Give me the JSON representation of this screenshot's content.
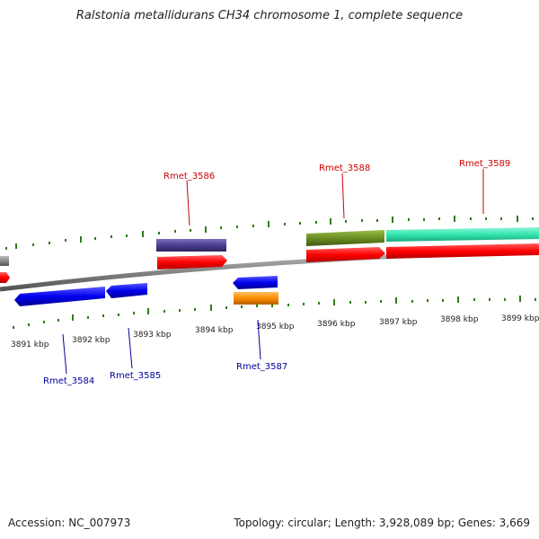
{
  "title": "Ralstonia metallidurans CH34 chromosome 1, complete sequence",
  "footer": {
    "accession": "Accession: NC_007973",
    "stats": "Topology: circular; Length: 3,928,089 bp; Genes: 3,669"
  },
  "ticks": [
    "3891 kbp",
    "3892 kbp",
    "3893 kbp",
    "3894 kbp",
    "3895 kbp",
    "3896 kbp",
    "3897 kbp",
    "3898 kbp",
    "3899 kbp"
  ],
  "gene_labels": {
    "rmet_3584": "Rmet_3584",
    "rmet_3585": "Rmet_3585",
    "rmet_3586": "Rmet_3586",
    "rmet_3587": "Rmet_3587",
    "rmet_3588": "Rmet_3588",
    "rmet_3589": "Rmet_3589"
  },
  "colors": {
    "forward_label": "#cc0000",
    "reverse_label": "#000099",
    "backbone": "#888888",
    "tick": "#2e7d1a",
    "cds_forward": "#ff0000",
    "cds_reverse": "#0000ee",
    "purple": "#4b3f8f",
    "olive": "#6b8e23",
    "teal": "#33e6b0",
    "orange": "#ff8c00"
  }
}
